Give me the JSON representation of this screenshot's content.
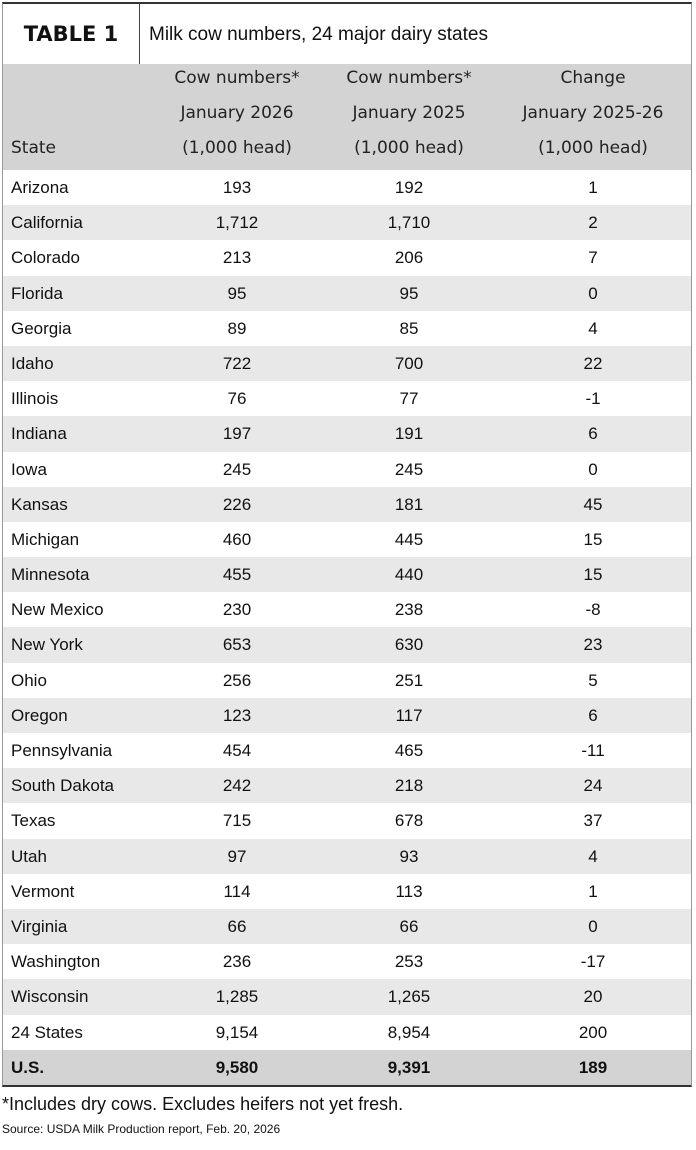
{
  "header": {
    "label": "TABLE 1",
    "title": "Milk cow numbers, 24 major dairy states"
  },
  "table": {
    "columns": [
      [
        "State"
      ],
      [
        "Cow numbers*",
        "January 2026",
        "(1,000 head)"
      ],
      [
        "Cow numbers*",
        "January 2025",
        "(1,000 head)"
      ],
      [
        "Change",
        "January 2025-26",
        "(1,000 head)"
      ]
    ],
    "rows": [
      [
        "Arizona",
        "193",
        "192",
        "1"
      ],
      [
        "California",
        "1,712",
        "1,710",
        "2"
      ],
      [
        "Colorado",
        "213",
        "206",
        "7"
      ],
      [
        "Florida",
        "95",
        "95",
        "0"
      ],
      [
        "Georgia",
        "89",
        "85",
        "4"
      ],
      [
        "Idaho",
        "722",
        "700",
        "22"
      ],
      [
        "Illinois",
        "76",
        "77",
        "-1"
      ],
      [
        "Indiana",
        "197",
        "191",
        "6"
      ],
      [
        "Iowa",
        "245",
        "245",
        "0"
      ],
      [
        "Kansas",
        "226",
        "181",
        "45"
      ],
      [
        "Michigan",
        "460",
        "445",
        "15"
      ],
      [
        "Minnesota",
        "455",
        "440",
        "15"
      ],
      [
        "New Mexico",
        "230",
        "238",
        "-8"
      ],
      [
        "New York",
        "653",
        "630",
        "23"
      ],
      [
        "Ohio",
        "256",
        "251",
        "5"
      ],
      [
        "Oregon",
        "123",
        "117",
        "6"
      ],
      [
        "Pennsylvania",
        "454",
        "465",
        "-11"
      ],
      [
        "South Dakota",
        "242",
        "218",
        "24"
      ],
      [
        "Texas",
        "715",
        "678",
        "37"
      ],
      [
        "Utah",
        "97",
        "93",
        "4"
      ],
      [
        "Vermont",
        "114",
        "113",
        "1"
      ],
      [
        "Virginia",
        "66",
        "66",
        "0"
      ],
      [
        "Washington",
        "236",
        "253",
        "-17"
      ],
      [
        "Wisconsin",
        "1,285",
        "1,265",
        "20"
      ],
      [
        "24 States",
        "9,154",
        "8,954",
        "200"
      ],
      [
        "U.S.",
        "9,580",
        "9,391",
        "189"
      ]
    ]
  },
  "footnote": "*Includes dry cows. Excludes heifers not yet fresh.",
  "source": "Source: USDA Milk Production report, Feb. 20, 2026"
}
